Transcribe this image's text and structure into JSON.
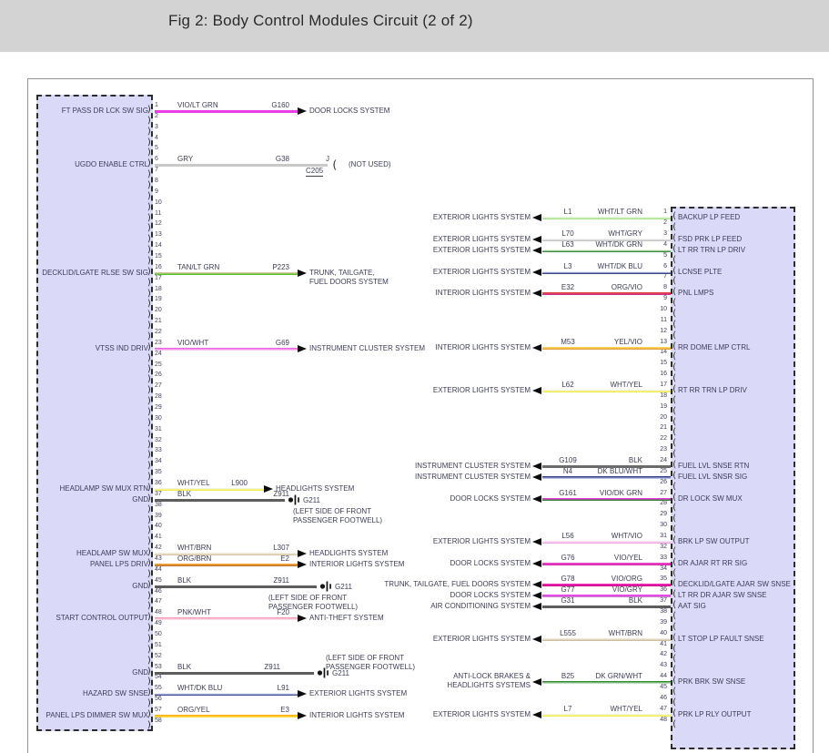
{
  "banner": {
    "title": "Fig 2: Body Control Modules Circuit (2 of 2)"
  },
  "colors": {
    "banner_bg": "#d3d3d3",
    "box_fill": "#dadaf8",
    "frame_border": "#949494",
    "label_text": "#3d3d58",
    "arrow_black": "#0b0b0b"
  },
  "icons": {
    "cavity_left": ")",
    "cavity_right": "(",
    "ground_name": "ground-icon",
    "arrow_name": "signal-arrow-icon"
  },
  "left_connector": {
    "pin_count": 58,
    "rows": [
      {
        "pin": 1,
        "signal": "FT PASS DR LCK SW SIG",
        "wire_color": "VIO/LT GRN",
        "circuit": "G160",
        "kind": "arrow",
        "dest": [
          "DOOR LOCKS SYSTEM"
        ],
        "c_top": "#e83ee8",
        "c_bot": "#e83ee8"
      },
      {
        "pin": 6,
        "signal": "UGDO ENABLE CTRL",
        "wire_color": "GRY",
        "circuit": "G38",
        "kind": "notused",
        "splice_top": "J",
        "splice_bottom": "C205",
        "note": "(NOT USED)",
        "c_top": "#c9c9c9",
        "c_bot": "#c9c9c9"
      },
      {
        "pin": 16,
        "signal": "DECKLID/LGATE RLSE SW SIG",
        "wire_color": "TAN/LT GRN",
        "circuit": "P223",
        "kind": "arrow",
        "dest": [
          "TRUNK, TAILGATE,",
          "FUEL DOORS SYSTEM"
        ],
        "c_top": "#d8c69a",
        "c_bot": "#52c52e"
      },
      {
        "pin": 23,
        "signal": "VTSS IND DRIV",
        "wire_color": "VIO/WHT",
        "circuit": "G69",
        "kind": "arrow",
        "dest": [
          "INSTRUMENT CLUSTER SYSTEM"
        ],
        "c_top": "#ef64e4",
        "c_bot": "#f9c0f2"
      },
      {
        "pin": 36,
        "signal": "HEADLAMP SW MUX RTN",
        "wire_color": "WHT/YEL",
        "circuit": "L900",
        "kind": "arrow",
        "dest": [
          "HEADLIGHTS SYSTEM"
        ],
        "c_top": "#f5f3d9",
        "c_bot": "#f1ec52"
      },
      {
        "pin": 37,
        "signal": "GND",
        "wire_color": "BLK",
        "circuit": "Z911",
        "kind": "ground",
        "ground_id": "G211",
        "notes": [
          "(LEFT SIDE OF FRONT",
          "PASSENGER FOOTWELL)"
        ],
        "c_top": "#5d5d5d",
        "c_bot": "#5d5d5d"
      },
      {
        "pin": 42,
        "signal": "HEADLAMP SW MUX",
        "wire_color": "WHT/BRN",
        "circuit": "L307",
        "kind": "arrow",
        "dest": [
          "HEADLIGHTS SYSTEM"
        ],
        "c_top": "#f2eee2",
        "c_bot": "#d9c8a8"
      },
      {
        "pin": 43,
        "signal": "PANEL LPS DRIV",
        "wire_color": "ORG/BRN",
        "circuit": "E2",
        "kind": "arrow",
        "dest": [
          "INTERIOR LIGHTS SYSTEM"
        ],
        "c_top": "#f5a340",
        "c_bot": "#c07a28"
      },
      {
        "pin": 45,
        "signal": "GND",
        "wire_color": "BLK",
        "circuit": "Z911",
        "kind": "ground",
        "ground_id": "G211",
        "notes": [
          "(LEFT SIDE OF FRONT",
          "PASSENGER FOOTWELL)"
        ],
        "c_top": "#5d5d5d",
        "c_bot": "#5d5d5d"
      },
      {
        "pin": 48,
        "signal": "START CONTROL OUTPUT",
        "wire_color": "PNK/WHT",
        "circuit": "F20",
        "kind": "arrow",
        "dest": [
          "ANTI-THEFT SYSTEM"
        ],
        "c_top": "#ff9cba",
        "c_bot": "#ffdce8"
      },
      {
        "pin": 53,
        "signal": "GND",
        "wire_color": "BLK",
        "circuit": "Z911",
        "kind": "ground",
        "ground_id": "G211",
        "notes": [
          "(LEFT SIDE OF FRONT",
          "PASSENGER FOOTWELL)"
        ],
        "c_top": "#5d5d5d",
        "c_bot": "#5d5d5d"
      },
      {
        "pin": 55,
        "signal": "HAZARD SW SNSE",
        "wire_color": "WHT/DK BLU",
        "circuit": "L91",
        "kind": "arrow",
        "dest": [
          "EXTERIOR LIGHTS SYSTEM"
        ],
        "c_top": "#eeeef6",
        "c_bot": "#4a55a0"
      },
      {
        "pin": 57,
        "signal": "PANEL LPS DIMMER SW MUX",
        "wire_color": "ORG/YEL",
        "circuit": "E3",
        "kind": "arrow",
        "dest": [
          "INTERIOR LIGHTS SYSTEM"
        ],
        "c_top": "#ffb414",
        "c_bot": "#ffd944"
      }
    ]
  },
  "right_connector": {
    "pin_count": 48,
    "rows": [
      {
        "pin": 1,
        "signal": "BACKUP LP FEED",
        "circuit": "L1",
        "wire_color": "WHT/LT GRN",
        "system": [
          "EXTERIOR LIGHTS SYSTEM"
        ],
        "c_top": "#eaf6e4",
        "c_bot": "#a8e28c"
      },
      {
        "pin": 3,
        "signal": "FSD PRK LP FEED",
        "circuit": "L70",
        "wire_color": "WHT/GRY",
        "system": [
          "EXTERIOR LIGHTS SYSTEM"
        ],
        "c_top": "#f2f2f2",
        "c_bot": "#c4c4c4"
      },
      {
        "pin": 4,
        "signal": "LT RR TRN LP DRIV",
        "circuit": "L63",
        "wire_color": "WHT/DK GRN",
        "system": [
          "EXTERIOR LIGHTS SYSTEM"
        ],
        "c_top": "#edf3e9",
        "c_bot": "#3f8f3f"
      },
      {
        "pin": 6,
        "signal": "LCNSE PLTE",
        "circuit": "L3",
        "wire_color": "WHT/DK BLU",
        "system": [
          "EXTERIOR LIGHTS SYSTEM"
        ],
        "c_top": "#ebebf5",
        "c_bot": "#3a478c"
      },
      {
        "pin": 8,
        "signal": "PNL LMPS",
        "circuit": "E32",
        "wire_color": "ORG/VIO",
        "system": [
          "INTERIOR LIGHTS SYSTEM"
        ],
        "c_top": "#e04438",
        "c_bot": "#d0338a"
      },
      {
        "pin": 13,
        "signal": "RR DOME LMP CTRL",
        "circuit": "M53",
        "wire_color": "YEL/VIO",
        "system": [
          "INTERIOR LIGHTS SYSTEM"
        ],
        "c_top": "#ffd35e",
        "c_bot": "#e2a23c"
      },
      {
        "pin": 17,
        "signal": "RT RR TRN LP DRIV",
        "circuit": "L62",
        "wire_color": "WHT/YEL",
        "system": [
          "EXTERIOR LIGHTS SYSTEM"
        ],
        "c_top": "#f5f3d9",
        "c_bot": "#f1ec52"
      },
      {
        "pin": 24,
        "signal": "FUEL LVL SNSE RTN",
        "circuit": "G109",
        "wire_color": "BLK",
        "system": [
          "INSTRUMENT CLUSTER SYSTEM"
        ],
        "c_top": "#6b6b6b",
        "c_bot": "#6b6b6b"
      },
      {
        "pin": 25,
        "signal": "FUEL LVL SNSR SIG",
        "circuit": "N4",
        "wire_color": "DK BLU/WHT",
        "system": [
          "INSTRUMENT CLUSTER SYSTEM"
        ],
        "c_top": "#343f8c",
        "c_bot": "#b9c2e2"
      },
      {
        "pin": 27,
        "signal": "DR LOCK SW MUX",
        "circuit": "G161",
        "wire_color": "VIO/DK GRN",
        "system": [
          "DOOR LOCKS SYSTEM"
        ],
        "c_top": "#e03ae0",
        "c_bot": "#43803a"
      },
      {
        "pin": 31,
        "signal": "BRK LP SW OUTPUT",
        "circuit": "L56",
        "wire_color": "WHT/VIO",
        "system": [
          "EXTERIOR LIGHTS SYSTEM"
        ],
        "c_top": "#fae4f5",
        "c_bot": "#efa8e0"
      },
      {
        "pin": 33,
        "signal": "DR AJAR RT RR SIG",
        "circuit": "G76",
        "wire_color": "VIO/YEL",
        "system": [
          "DOOR LOCKS SYSTEM"
        ],
        "c_top": "#ee42cc",
        "c_bot": "#d233ad"
      },
      {
        "pin": 35,
        "signal": "DECKLID/LGATE AJAR SW SNSE",
        "circuit": "G78",
        "wire_color": "VIO/ORG",
        "system": [
          "TRUNK, TAILGATE, FUEL DOORS SYSTEM"
        ],
        "c_top": "#f02ab4",
        "c_bot": "#d00f95"
      },
      {
        "pin": 36,
        "signal": "LT RR DR AJAR SW SNSE",
        "circuit": "G77",
        "wire_color": "VIO/GRY",
        "system": [
          "DOOR LOCKS SYSTEM"
        ],
        "c_top": "#ee3bee",
        "c_bot": "#cb79cb"
      },
      {
        "pin": 37,
        "signal": "AAT SIG",
        "circuit": "G31",
        "wire_color": "BLK",
        "system": [
          "AIR CONDITIONING SYSTEM"
        ],
        "c_top": "#5d5d5d",
        "c_bot": "#5d5d5d"
      },
      {
        "pin": 40,
        "signal": "LT STOP LP FAULT SNSE",
        "circuit": "L555",
        "wire_color": "WHT/BRN",
        "system": [
          "EXTERIOR LIGHTS SYSTEM"
        ],
        "c_top": "#efe8da",
        "c_bot": "#cebfa0"
      },
      {
        "pin": 44,
        "signal": "PRK BRK SW SNSE",
        "circuit": "B25",
        "wire_color": "DK GRN/WHT",
        "system": [
          "ANTI-LOCK BRAKES &",
          "HEADLIGHTS SYSTEMS"
        ],
        "c_top": "#338a33",
        "c_bot": "#bfe0bf"
      },
      {
        "pin": 47,
        "signal": "PRK LP RLY OUTPUT",
        "circuit": "L7",
        "wire_color": "WHT/YEL",
        "system": [
          "EXTERIOR LIGHTS SYSTEM"
        ],
        "c_top": "#f5f3d9",
        "c_bot": "#f1ec52"
      }
    ]
  }
}
